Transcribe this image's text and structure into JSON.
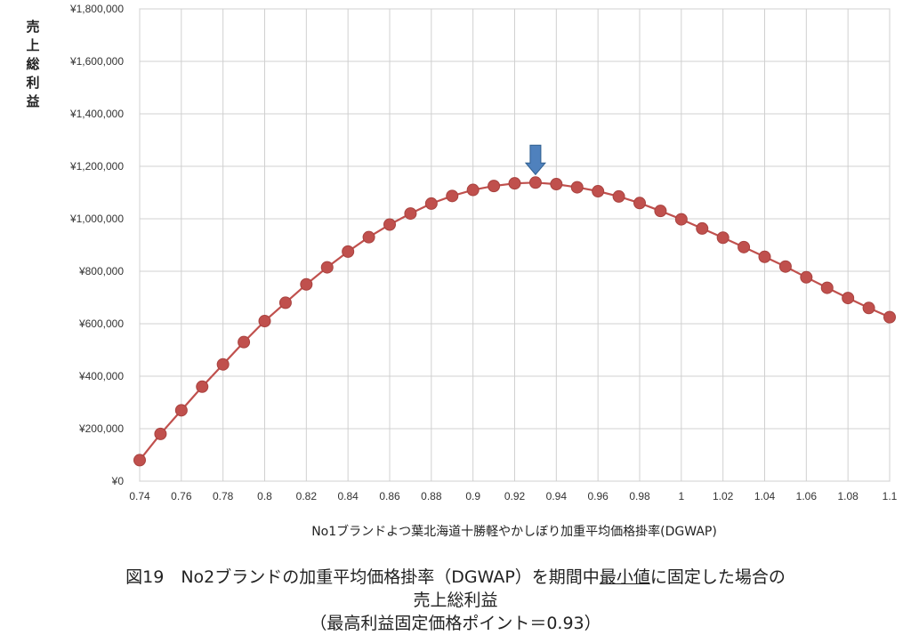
{
  "chart_data": {
    "type": "line",
    "xlabel": "No1ブランドよつ葉北海道十勝軽やかしぼり加重平均価格掛率(DGWAP)",
    "ylabel": "売上総利益",
    "xlim": [
      0.74,
      1.1
    ],
    "ylim": [
      0,
      1800000
    ],
    "x_ticks": [
      "0.74",
      "0.76",
      "0.78",
      "0.8",
      "0.82",
      "0.84",
      "0.86",
      "0.88",
      "0.9",
      "0.92",
      "0.94",
      "0.96",
      "0.98",
      "1",
      "1.02",
      "1.04",
      "1.06",
      "1.08",
      "1.1"
    ],
    "y_ticks": [
      "¥0",
      "¥200,000",
      "¥400,000",
      "¥600,000",
      "¥800,000",
      "¥1,000,000",
      "¥1,200,000",
      "¥1,400,000",
      "¥1,600,000",
      "¥1,800,000"
    ],
    "grid": true,
    "series_color": "#c0504d",
    "marker_color": "#c0504d",
    "arrow_color": "#4f81bd",
    "arrow_at_x": 0.93,
    "x": [
      0.74,
      0.75,
      0.76,
      0.77,
      0.78,
      0.79,
      0.8,
      0.81,
      0.82,
      0.83,
      0.84,
      0.85,
      0.86,
      0.87,
      0.88,
      0.89,
      0.9,
      0.91,
      0.92,
      0.93,
      0.94,
      0.95,
      0.96,
      0.97,
      0.98,
      0.99,
      1.0,
      1.01,
      1.02,
      1.03,
      1.04,
      1.05,
      1.06,
      1.07,
      1.08,
      1.09,
      1.1
    ],
    "values": [
      80000,
      180000,
      270000,
      360000,
      445000,
      530000,
      610000,
      680000,
      750000,
      815000,
      875000,
      930000,
      978000,
      1020000,
      1058000,
      1087000,
      1110000,
      1125000,
      1135000,
      1138000,
      1132000,
      1120000,
      1105000,
      1085000,
      1060000,
      1030000,
      998000,
      963000,
      928000,
      892000,
      855000,
      818000,
      777000,
      737000,
      698000,
      660000,
      625000
    ]
  },
  "caption": {
    "line1_prefix": "図19　No2ブランドの加重平均価格掛率（DGWAP）を期間中",
    "line1_underlined": "最小値",
    "line1_suffix": "に固定した場合の",
    "line2": "売上総利益",
    "line3": "（最高利益固定価格ポイント＝0.93）"
  }
}
